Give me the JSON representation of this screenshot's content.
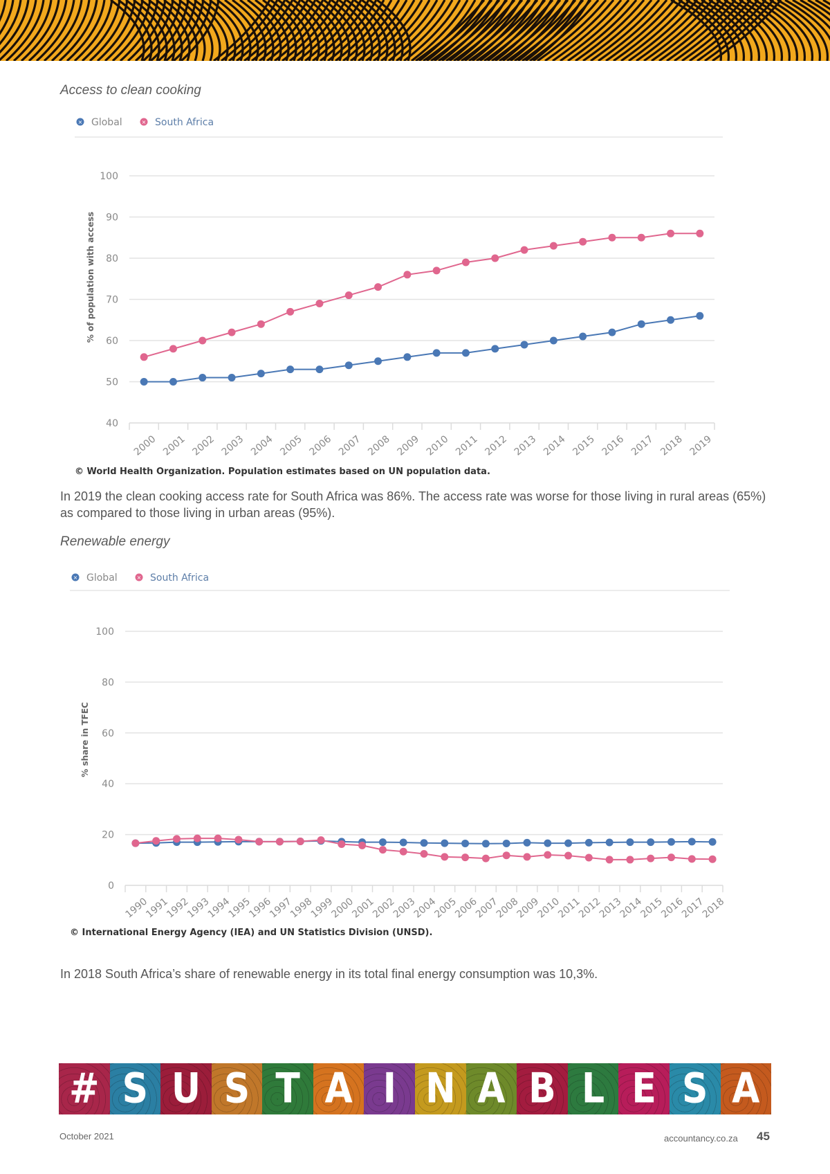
{
  "header": {
    "banner": "decorative-pattern-banner"
  },
  "sections": {
    "cooking": {
      "title": "Access to clean cooking",
      "paragraph": "In 2019 the clean cooking access rate for South Africa was 86%. The access rate was worse for those living in rural areas (65%) as compared to those living in urban areas (95%)."
    },
    "renewable": {
      "title": "Renewable energy",
      "paragraph": "In 2018 South Africa’s share of renewable energy in its total final energy consumption was 10,3%."
    }
  },
  "colors": {
    "global": "#4a78b5",
    "south_africa": "#e0668e",
    "grid": "#e3e3e3",
    "banner": "#f2a81d"
  },
  "chart_data": [
    {
      "type": "line",
      "title": "Access to clean cooking",
      "xlabel": "",
      "ylabel": "% of population with access",
      "ylim": [
        40,
        100
      ],
      "yticks": [
        40,
        50,
        60,
        70,
        80,
        90,
        100
      ],
      "grid": true,
      "legend": "top-left",
      "x": [
        "2000",
        "2001",
        "2002",
        "2003",
        "2004",
        "2005",
        "2006",
        "2007",
        "2008",
        "2009",
        "2010",
        "2011",
        "2012",
        "2013",
        "2014",
        "2015",
        "2016",
        "2017",
        "2018",
        "2019"
      ],
      "series": [
        {
          "name": "Global",
          "values": [
            50,
            50,
            51,
            51,
            52,
            53,
            53,
            54,
            55,
            56,
            57,
            57,
            58,
            59,
            60,
            61,
            62,
            64,
            65,
            66
          ]
        },
        {
          "name": "South Africa",
          "values": [
            56,
            58,
            60,
            62,
            64,
            67,
            69,
            71,
            73,
            76,
            77,
            79,
            80,
            82,
            83,
            84,
            85,
            85,
            86,
            86
          ]
        }
      ],
      "source": "© World Health Organization. Population estimates based on UN population data."
    },
    {
      "type": "line",
      "title": "Renewable energy",
      "xlabel": "",
      "ylabel": "% share in TFEC",
      "ylim": [
        0,
        100
      ],
      "yticks": [
        0,
        20,
        40,
        60,
        80,
        100
      ],
      "grid": true,
      "legend": "top-left",
      "x": [
        "1990",
        "1991",
        "1992",
        "1993",
        "1994",
        "1995",
        "1996",
        "1997",
        "1998",
        "1999",
        "2000",
        "2001",
        "2002",
        "2003",
        "2004",
        "2005",
        "2006",
        "2007",
        "2008",
        "2009",
        "2010",
        "2011",
        "2012",
        "2013",
        "2014",
        "2015",
        "2016",
        "2017",
        "2018"
      ],
      "series": [
        {
          "name": "Global",
          "values": [
            16.6,
            16.7,
            17.0,
            17.0,
            17.1,
            17.2,
            17.2,
            17.2,
            17.3,
            17.5,
            17.2,
            17.0,
            17.0,
            16.9,
            16.7,
            16.6,
            16.5,
            16.4,
            16.5,
            16.8,
            16.6,
            16.6,
            16.8,
            16.9,
            17.0,
            17.0,
            17.1,
            17.2,
            17.1
          ]
        },
        {
          "name": "South Africa",
          "values": [
            16.6,
            17.5,
            18.3,
            18.5,
            18.5,
            18.0,
            17.2,
            17.2,
            17.3,
            17.8,
            16.2,
            15.7,
            14.0,
            13.3,
            12.4,
            11.2,
            11.0,
            10.6,
            11.8,
            11.2,
            12.0,
            11.7,
            10.9,
            10.1,
            10.1,
            10.6,
            11.0,
            10.4,
            10.3
          ]
        }
      ],
      "source": "© International Energy Agency (IEA) and UN Statistics Division (UNSD)."
    }
  ],
  "hashtag": {
    "letters": [
      "#",
      "S",
      "U",
      "S",
      "T",
      "A",
      "I",
      "N",
      "A",
      "B",
      "L",
      "E",
      "S",
      "A"
    ],
    "tile_colors": [
      "#a8264a",
      "#2b7fa3",
      "#9b1d3a",
      "#c0772a",
      "#2f7a3a",
      "#d5731f",
      "#7a3a8f",
      "#c49a1e",
      "#6e8a2a",
      "#a31c3f",
      "#2d7a3f",
      "#b71d5a",
      "#2a8aa8",
      "#c45a1e"
    ]
  },
  "footer": {
    "date": "October 2021",
    "site": "accountancy.co.za",
    "page": "45"
  }
}
